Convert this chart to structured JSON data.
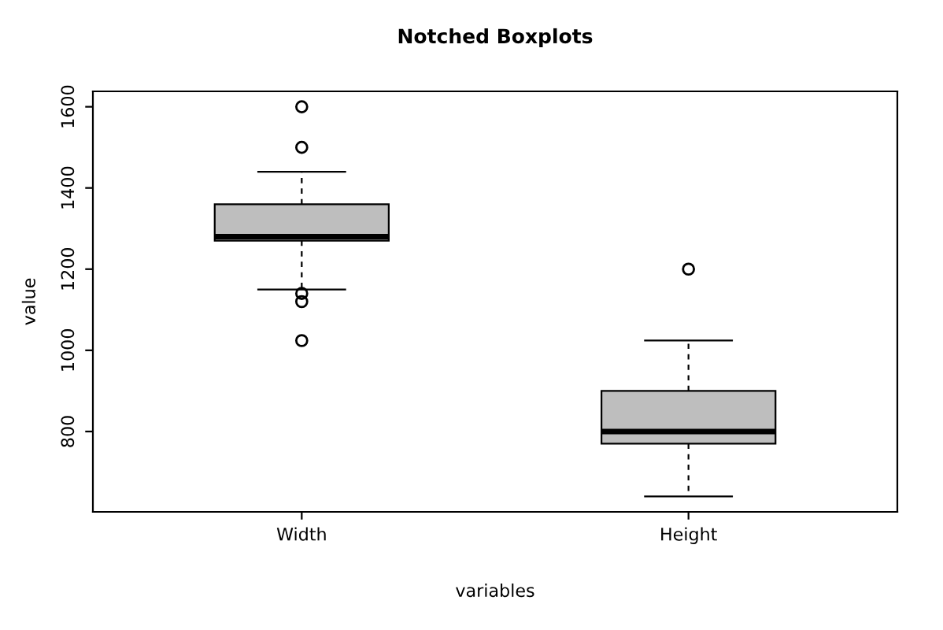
{
  "chart_data": {
    "type": "box",
    "title": "Notched Boxplots",
    "xlabel": "variables",
    "ylabel": "value",
    "categories": [
      "Width",
      "Height"
    ],
    "boxes": [
      {
        "low": 1150,
        "q1": 1270,
        "median": 1280,
        "q3": 1360,
        "high": 1440,
        "outliers": [
          1600,
          1500,
          1140,
          1120,
          1024
        ]
      },
      {
        "low": 640,
        "q1": 770,
        "median": 800,
        "q3": 900,
        "high": 1024,
        "outliers": [
          1200
        ]
      }
    ],
    "color": "#bebebe",
    "ylim": [
      602,
      1638
    ],
    "yticks": [
      800,
      1000,
      1200,
      1400,
      1600
    ],
    "grid": false
  }
}
